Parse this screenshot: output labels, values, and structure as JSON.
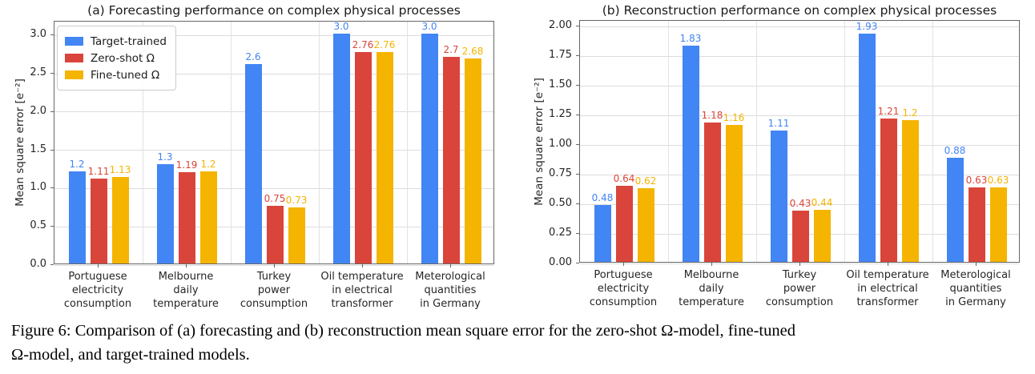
{
  "figure": {
    "caption_line1": "Figure 6: Comparison of (a) forecasting and (b) reconstruction mean square error for the zero-shot Ω-model, fine-tuned",
    "caption_line2": "Ω-model, and target-trained models."
  },
  "palette": {
    "target_trained": "#4285F4",
    "zero_shot": "#D9453A",
    "fine_tuned": "#F4B400"
  },
  "chart_data": [
    {
      "type": "bar",
      "title": "(a) Forecasting performance on complex physical processes",
      "xlabel": "",
      "ylabel": "Mean square error [e⁻²]",
      "ylim": [
        0,
        3.18
      ],
      "grid": true,
      "legend_position": "upper left",
      "ytick_values": [
        0.0,
        0.5,
        1.0,
        1.5,
        2.0,
        2.5,
        3.0
      ],
      "ytick_labels": [
        "0.0",
        "0.5",
        "1.0",
        "1.5",
        "2.0",
        "2.5",
        "3.0"
      ],
      "categories": [
        [
          "Portuguese",
          "electricity",
          "consumption"
        ],
        [
          "Melbourne",
          "daily",
          "temperature"
        ],
        [
          "Turkey",
          "power",
          "consumption"
        ],
        [
          "Oil temperature",
          "in electrical",
          "transformer"
        ],
        [
          "Meterological",
          "quantities",
          "in Germany"
        ]
      ],
      "series": [
        {
          "name": "Target-trained",
          "color": "#4285F4",
          "values": [
            1.2,
            1.3,
            2.6,
            3.0,
            3.0
          ],
          "labels": [
            "1.2",
            "1.3",
            "2.6",
            "3.0",
            "3.0"
          ]
        },
        {
          "name": "Zero-shot Ω",
          "color": "#D9453A",
          "values": [
            1.11,
            1.19,
            0.75,
            2.76,
            2.7
          ],
          "labels": [
            "1.11",
            "1.19",
            "0.75",
            "2.76",
            "2.7"
          ]
        },
        {
          "name": "Fine-tuned Ω",
          "color": "#F4B400",
          "values": [
            1.13,
            1.2,
            0.73,
            2.76,
            2.68
          ],
          "labels": [
            "1.13",
            "1.2",
            "0.73",
            "2.76",
            "2.68"
          ]
        }
      ]
    },
    {
      "type": "bar",
      "title": "(b) Reconstruction performance on complex physical processes",
      "xlabel": "",
      "ylabel": "Mean square error [e⁻²]",
      "ylim": [
        0,
        2.05
      ],
      "grid": true,
      "legend_position": null,
      "ytick_values": [
        0.0,
        0.25,
        0.5,
        0.75,
        1.0,
        1.25,
        1.5,
        1.75,
        2.0
      ],
      "ytick_labels": [
        "0.00",
        "0.25",
        "0.50",
        "0.75",
        "1.00",
        "1.25",
        "1.50",
        "1.75",
        "2.00"
      ],
      "categories": [
        [
          "Portuguese",
          "electricity",
          "consumption"
        ],
        [
          "Melbourne",
          "daily",
          "temperature"
        ],
        [
          "Turkey",
          "power",
          "consumption"
        ],
        [
          "Oil temperature",
          "in electrical",
          "transformer"
        ],
        [
          "Meterological",
          "quantities",
          "in Germany"
        ]
      ],
      "series": [
        {
          "name": "Target-trained",
          "color": "#4285F4",
          "values": [
            0.48,
            1.83,
            1.11,
            1.93,
            0.88
          ],
          "labels": [
            "0.48",
            "1.83",
            "1.11",
            "1.93",
            "0.88"
          ]
        },
        {
          "name": "Zero-shot Ω",
          "color": "#D9453A",
          "values": [
            0.64,
            1.18,
            0.43,
            1.21,
            0.63
          ],
          "labels": [
            "0.64",
            "1.18",
            "0.43",
            "1.21",
            "0.63"
          ]
        },
        {
          "name": "Fine-tuned Ω",
          "color": "#F4B400",
          "values": [
            0.62,
            1.16,
            0.44,
            1.2,
            0.63
          ],
          "labels": [
            "0.62",
            "1.16",
            "0.44",
            "1.2",
            "0.63"
          ]
        }
      ]
    }
  ]
}
